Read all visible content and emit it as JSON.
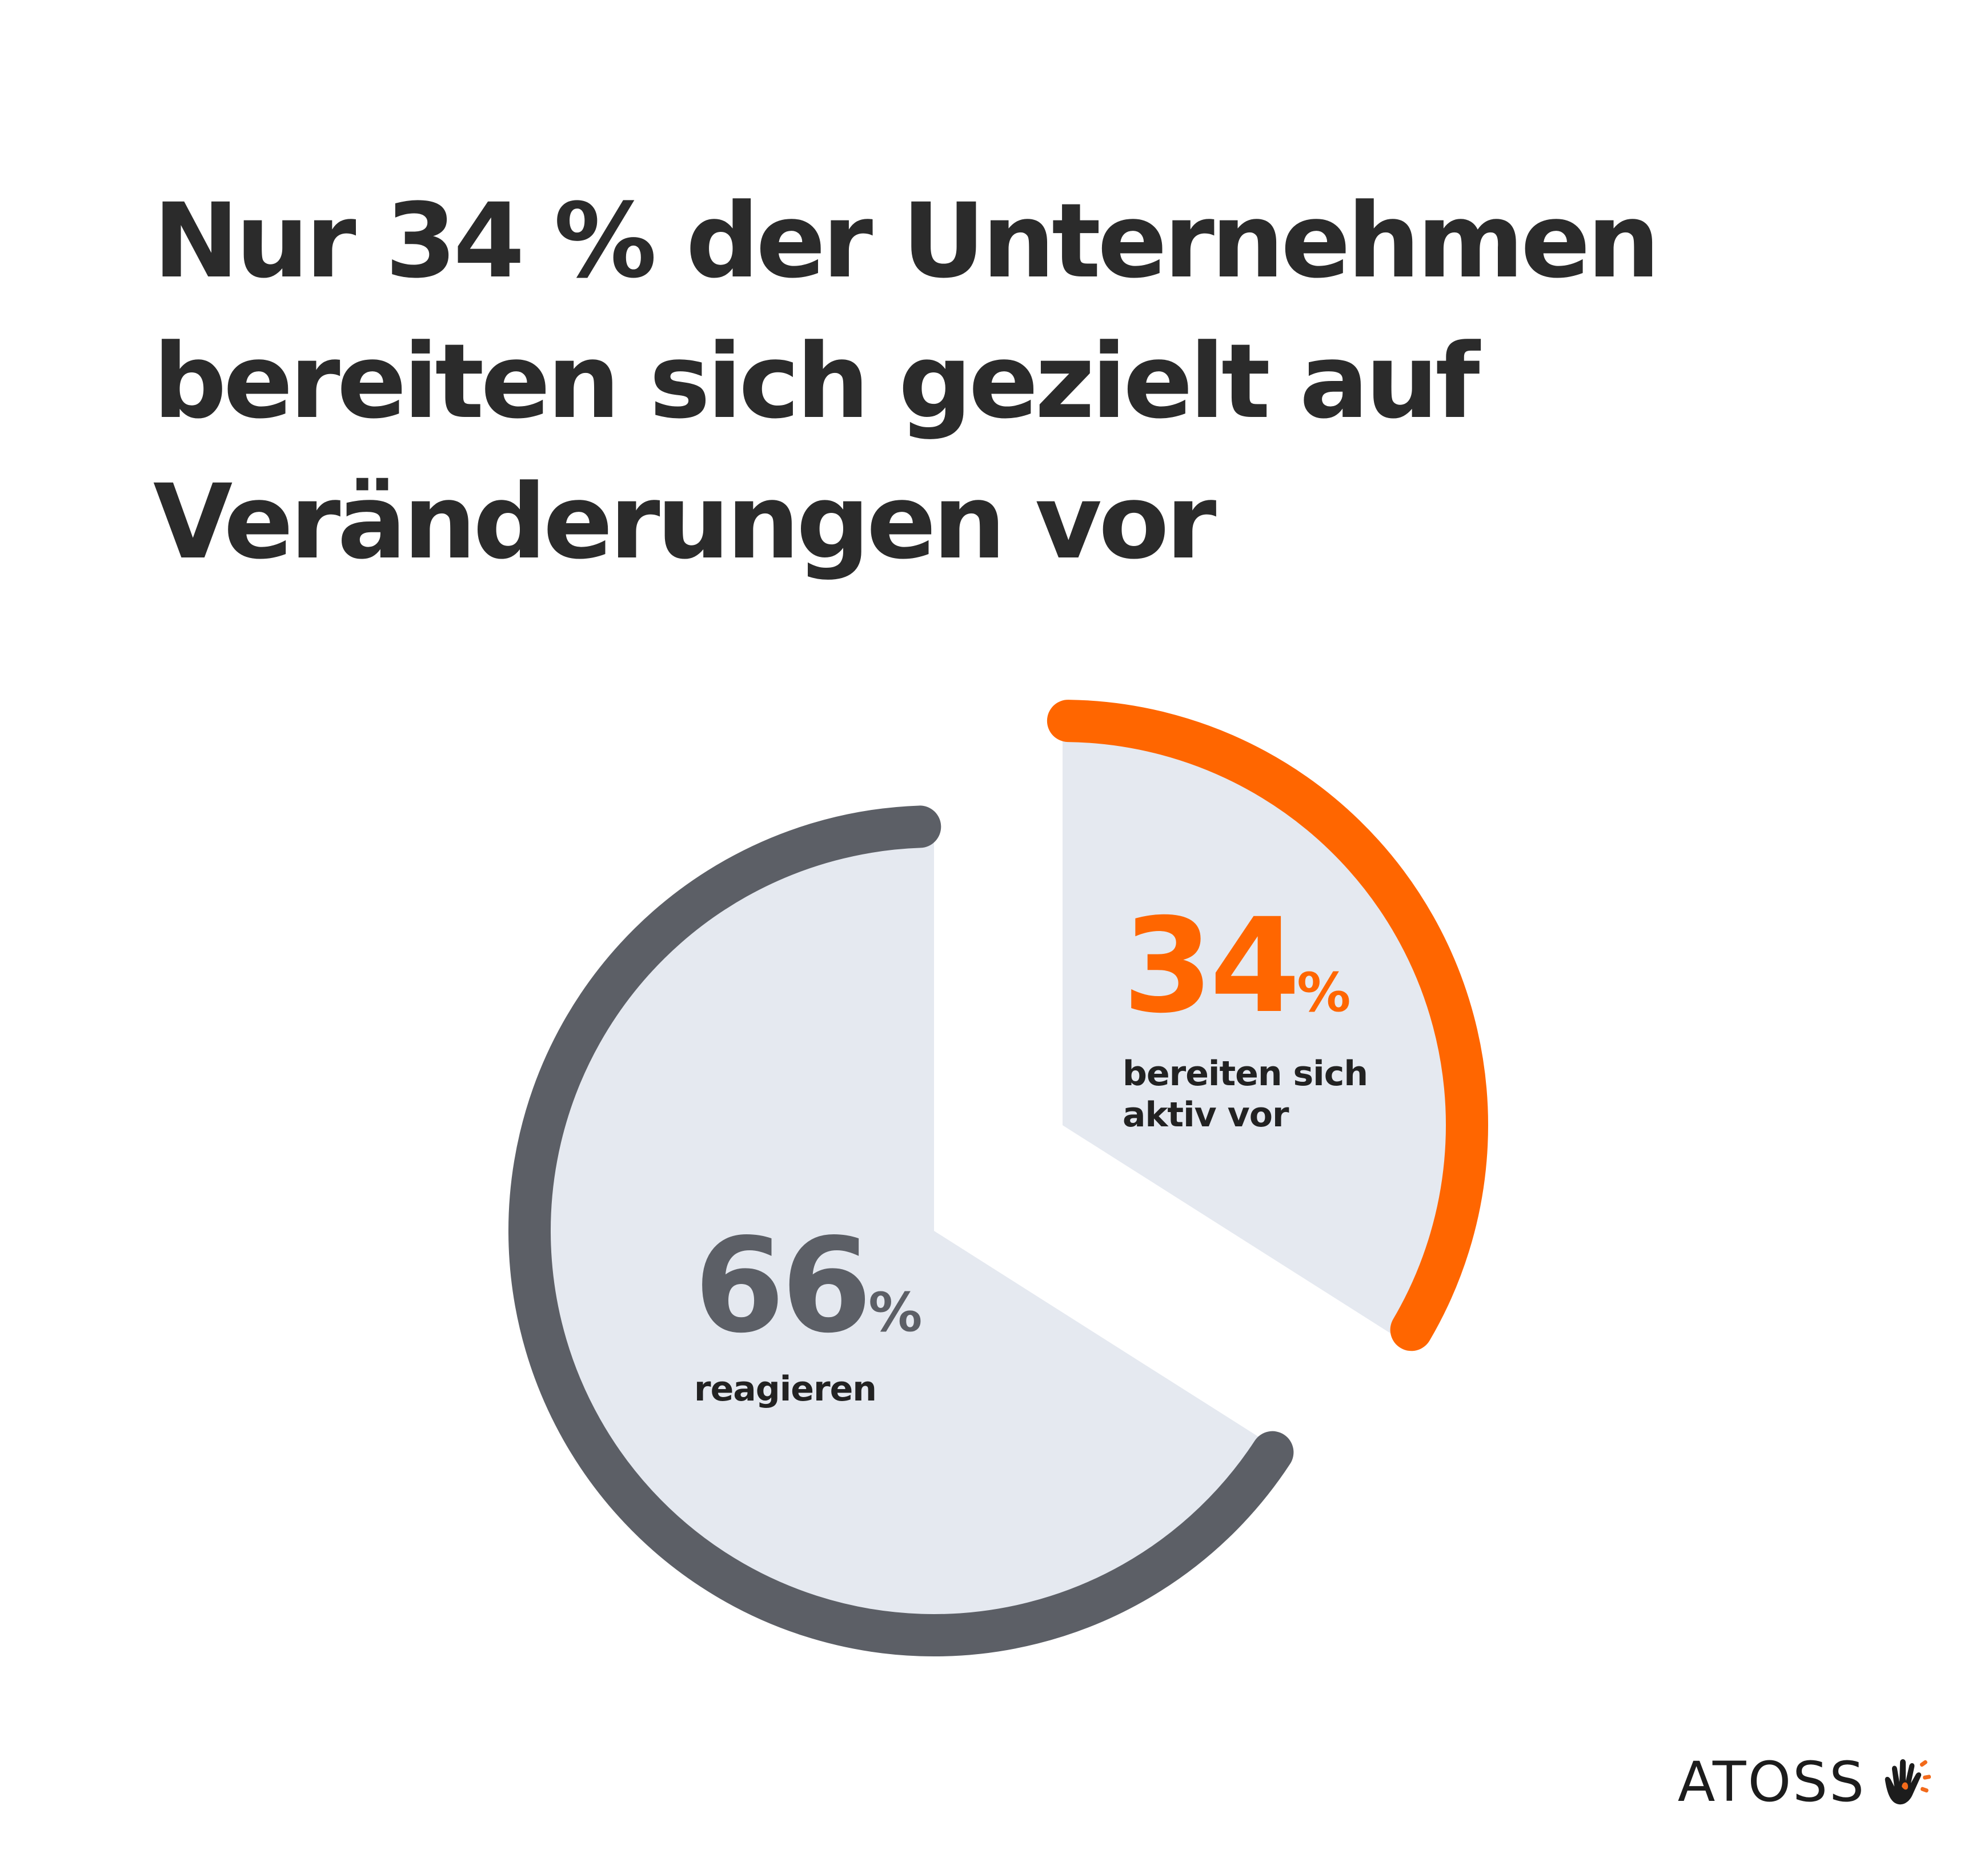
{
  "headline": {
    "line1": "Nur 34 % der Unternehmen",
    "line2": "bereiten sich gezielt auf",
    "line3": "Veränderungen vor"
  },
  "chart_data": {
    "type": "pie",
    "title": "Nur 34 % der Unternehmen bereiten sich gezielt auf Veränderungen vor",
    "unit": "%",
    "segments": [
      {
        "name": "bereiten sich aktiv vor",
        "value": 34,
        "value_label": "34",
        "unit_label": "%",
        "label_lines": [
          "bereiten sich",
          "aktiv vor"
        ],
        "color": "#ff6600"
      },
      {
        "name": "reagieren",
        "value": 66,
        "value_label": "66",
        "unit_label": "%",
        "label_lines": [
          "reagieren"
        ],
        "color": "#5c5f66"
      }
    ],
    "fill_color": "#e5e9f0"
  },
  "brand": {
    "name": "ATOSS",
    "icon": "hand-logo-icon",
    "accent": "#f26a1b"
  }
}
